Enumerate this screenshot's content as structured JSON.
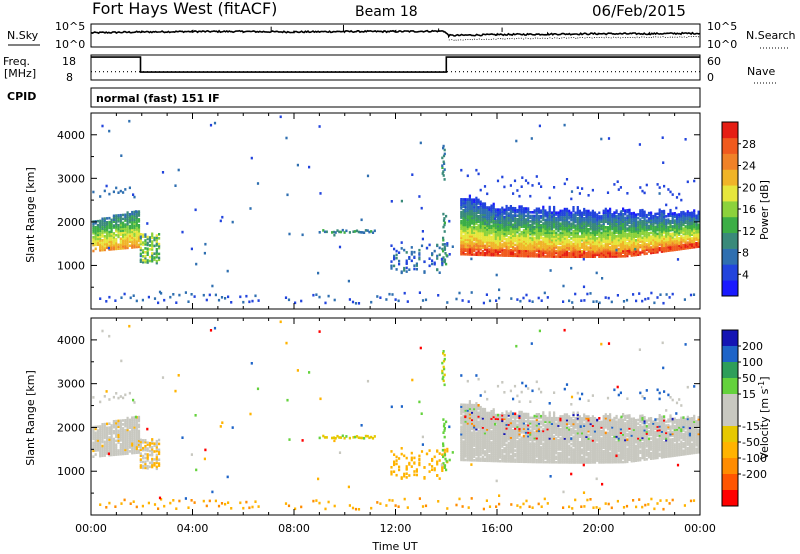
{
  "header": {
    "radar": "Fort Hays West (fitACF)",
    "beam": "Beam 18",
    "date": "06/Feb/2015"
  },
  "panels": {
    "nsky": {
      "label": "N.Sky",
      "tick_high": "10^5",
      "tick_low": "10^0",
      "right_tick_high": "10^5",
      "right_tick_low": "10^0",
      "right_label": "N.Search"
    },
    "freq": {
      "label_line1": "Freq.",
      "label_line2": "[MHz]",
      "tick_high": "18",
      "tick_low": "8",
      "right_tick_high": "60",
      "right_tick_low": "0",
      "right_label": "Nave",
      "cpid_label": "CPID",
      "cpid_text": "normal (fast) 151 IF"
    }
  },
  "colors": {
    "power_scale": [
      "#1a1aff",
      "#2244dd",
      "#2f6fb0",
      "#3a8a7a",
      "#3cae46",
      "#8cd23c",
      "#e6e63c",
      "#f0b428",
      "#f08228",
      "#f05a1e",
      "#e61e14"
    ],
    "velocity_scale": [
      "#ff0000",
      "#ff5500",
      "#ff8c00",
      "#ffb300",
      "#e6c800",
      "#c8c8c0",
      "#c8c8c0",
      "#64d23c",
      "#2e9e5a",
      "#1e64c8",
      "#1414b4"
    ],
    "ground_scatter": "#c8c8c0"
  },
  "chart_data": [
    {
      "type": "line",
      "name": "nsky-nsearch",
      "x_unit": "hours UT",
      "series": [
        {
          "x": [
            0,
            2,
            4,
            6,
            8,
            10,
            12,
            13.9,
            14.1,
            16,
            18,
            20,
            22,
            24
          ],
          "y": [
            3.2,
            3.4,
            3.5,
            3.5,
            3.4,
            3.5,
            3.5,
            3.6,
            2.6,
            2.8,
            2.9,
            3.0,
            3.0,
            3.1
          ]
        },
        {
          "x": [
            14.1,
            16,
            18,
            20,
            22,
            24
          ],
          "y": [
            1.6,
            1.8,
            2.0,
            2.1,
            2.2,
            2.3
          ]
        }
      ]
    },
    {
      "type": "line",
      "name": "frequency-nave",
      "x_unit": "hours UT",
      "series": [
        {
          "x": [
            0,
            1.95,
            1.95,
            14.0,
            14.0,
            24
          ],
          "y": [
            18,
            18,
            10.8,
            10.8,
            18,
            18
          ]
        },
        {
          "x": [
            0,
            24
          ],
          "y": [
            11,
            11
          ]
        }
      ]
    },
    {
      "type": "heatmap",
      "name": "power",
      "xlabel": "",
      "ylabel": "Slant Range [km]",
      "xlim": [
        0,
        24
      ],
      "ylim": [
        0,
        4500
      ],
      "yticks": [
        1000,
        2000,
        3000,
        4000
      ],
      "colorbar": {
        "label": "Power [dB]",
        "ticks": [
          4,
          8,
          12,
          16,
          20,
          24,
          28
        ],
        "range": [
          0,
          32
        ]
      },
      "regions": [
        {
          "t": [
            0.1,
            1.9
          ],
          "r_low": [
            1300,
            1400
          ],
          "r_high": [
            2000,
            2300
          ],
          "values": [
            8,
            24
          ],
          "note": ""
        },
        {
          "t": [
            1.9,
            2.7
          ],
          "r_low": [
            1000,
            1000
          ],
          "r_high": [
            1600,
            1700
          ],
          "values": [
            8,
            20
          ]
        },
        {
          "t": [
            14.6,
            24
          ],
          "r_low": [
            1300,
            1350
          ],
          "r_high": [
            2600,
            2300
          ],
          "values": [
            6,
            26
          ]
        },
        {
          "t": [
            8.9,
            11.2
          ],
          "r_low": [
            1750,
            1750
          ],
          "r_high": [
            1800,
            1800
          ],
          "values": [
            6,
            14
          ]
        },
        {
          "t": [
            11.8,
            14.0
          ],
          "r_low": [
            800,
            900
          ],
          "r_high": [
            1200,
            1500
          ],
          "values": [
            4,
            10
          ]
        },
        {
          "t": [
            13.8,
            14.0
          ],
          "r_low": [
            2900,
            2900
          ],
          "r_high": [
            3700,
            3700
          ],
          "values": [
            6,
            12
          ]
        }
      ]
    },
    {
      "type": "heatmap",
      "name": "velocity",
      "xlabel": "Time UT",
      "ylabel": "Slant Range [km]",
      "xlim": [
        0,
        24
      ],
      "ylim": [
        0,
        4500
      ],
      "xticks": [
        "00:00",
        "04:00",
        "08:00",
        "12:00",
        "16:00",
        "20:00",
        "00:00"
      ],
      "yticks": [
        1000,
        2000,
        3000,
        4000
      ],
      "colorbar": {
        "label": "Velocity [m s^-1]",
        "ticks": [
          "-200",
          "-100",
          "-50",
          "-15",
          "15",
          "50",
          "100",
          "200"
        ]
      }
    }
  ]
}
